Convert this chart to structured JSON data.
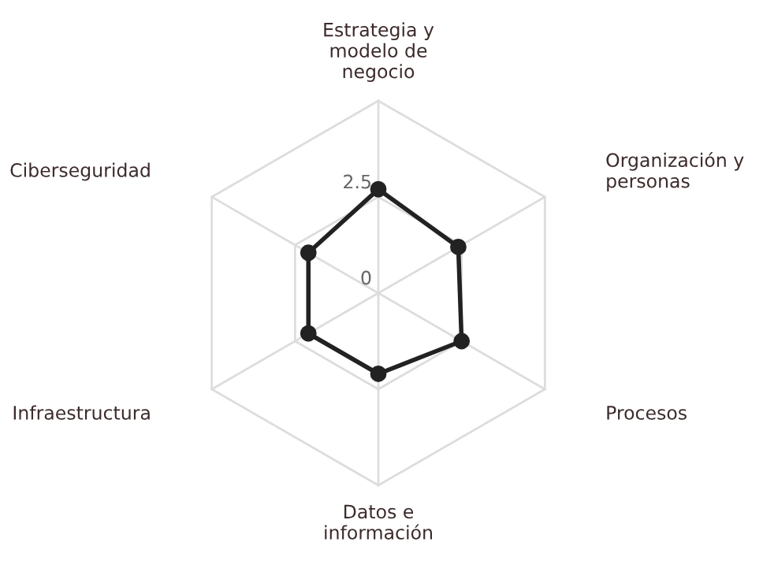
{
  "chart_data": {
    "type": "radar",
    "categories": [
      "Estrategia y\nmodelo de\nnegocio",
      "Organización y\npersonas",
      "Procesos",
      "Datos e\ninformación",
      "Infraestructura",
      "Ciberseguridad"
    ],
    "series": [
      {
        "color": "#222222",
        "values": [
          2.7,
          2.4,
          2.5,
          2.1,
          2.1,
          2.1
        ]
      }
    ],
    "ylim": [
      0,
      5
    ],
    "yticks": [
      0,
      2.5
    ],
    "marker": "circle",
    "line_style": "solid",
    "grid": true
  }
}
